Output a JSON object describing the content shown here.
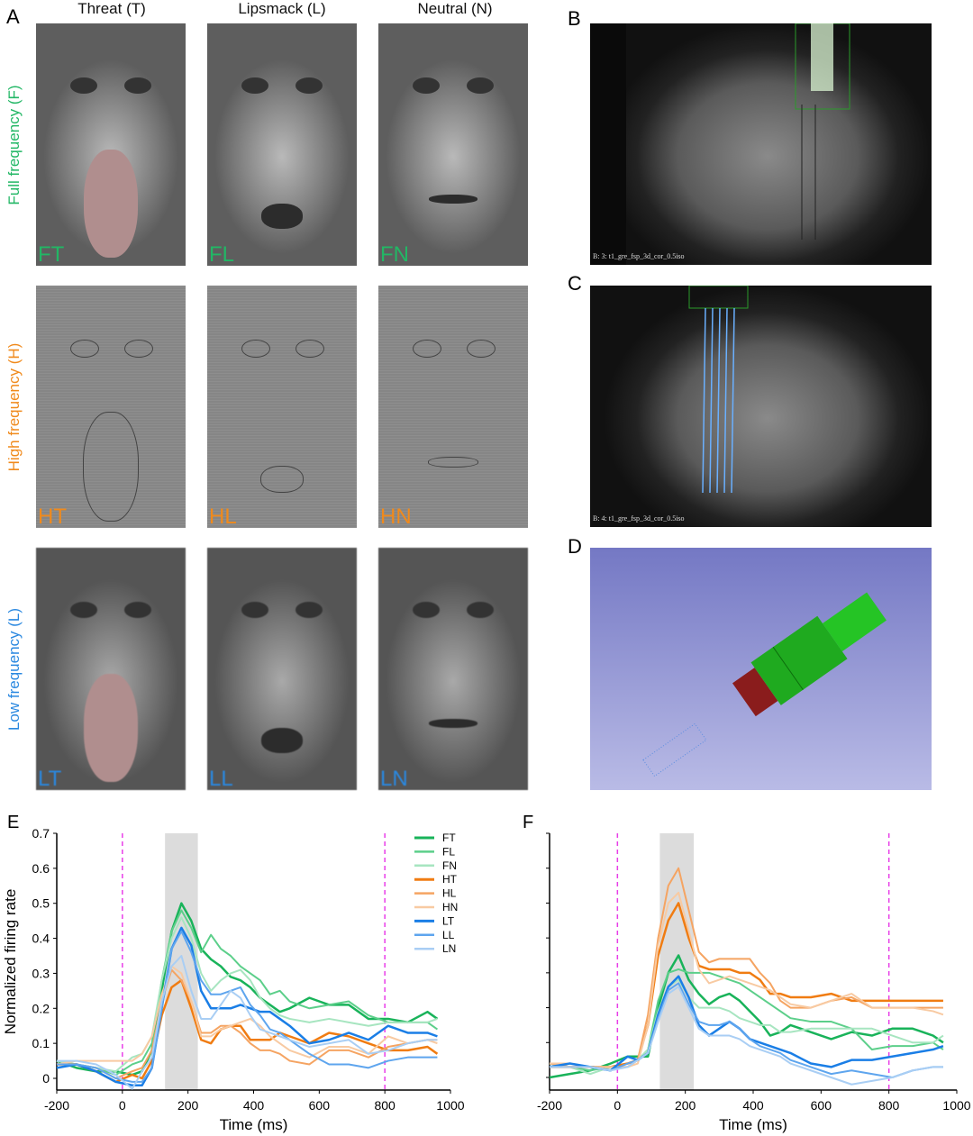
{
  "panels": {
    "A": "A",
    "B": "B",
    "C": "C",
    "D": "D",
    "E": "E",
    "F": "F"
  },
  "columns": [
    "Threat (T)",
    "Lipsmack (L)",
    "Neutral (N)"
  ],
  "rows": [
    {
      "label": "Full frequency (F)",
      "color": "#22b765",
      "images": [
        "FT",
        "FL",
        "FN"
      ]
    },
    {
      "label": "High frequency (H)",
      "color": "#f08a1c",
      "images": [
        "HT",
        "HL",
        "HN"
      ]
    },
    {
      "label": "Low frequency (L)",
      "color": "#2a88e0",
      "images": [
        "LT",
        "LL",
        "LN"
      ]
    }
  ],
  "mri": {
    "B_caption": "B: 3: t1_gre_fsp_3d_cor_0.5iso",
    "C_caption": "B: 4: t1_gre_fsp_3d_cor_0.5iso"
  },
  "chart_data": [
    {
      "panel": "E",
      "type": "line",
      "xlabel": "Time (ms)",
      "ylabel": "Normalized firing rate",
      "xlim": [
        -200,
        1000
      ],
      "ylim": [
        -0.03,
        0.7
      ],
      "xticks": [
        -200,
        0,
        200,
        400,
        600,
        800,
        1000
      ],
      "yticks": [
        0,
        0.1,
        0.2,
        0.3,
        0.4,
        0.5,
        0.6,
        0.7
      ],
      "ytick_labels_shown": true,
      "vlines_dashed": [
        0,
        800
      ],
      "vline_color": "#e83ee8",
      "shaded_window": [
        130,
        230
      ],
      "legend": "top-right",
      "x": [
        -200,
        -140,
        -80,
        -20,
        30,
        60,
        90,
        120,
        150,
        180,
        210,
        240,
        270,
        300,
        330,
        360,
        390,
        420,
        450,
        480,
        510,
        570,
        630,
        690,
        750,
        810,
        870,
        930,
        960
      ],
      "series": [
        {
          "name": "FT",
          "color": "#19b35a",
          "width": 2.5,
          "values": [
            0.05,
            0.03,
            0.02,
            0.02,
            0.01,
            0.02,
            0.08,
            0.25,
            0.42,
            0.5,
            0.45,
            0.37,
            0.34,
            0.32,
            0.29,
            0.28,
            0.26,
            0.23,
            0.21,
            0.19,
            0.2,
            0.23,
            0.21,
            0.21,
            0.17,
            0.17,
            0.16,
            0.19,
            0.17
          ]
        },
        {
          "name": "FL",
          "color": "#5ccf8a",
          "width": 2,
          "values": [
            0.05,
            0.04,
            0.03,
            0.01,
            0.04,
            0.05,
            0.1,
            0.28,
            0.42,
            0.48,
            0.43,
            0.36,
            0.41,
            0.37,
            0.35,
            0.32,
            0.3,
            0.28,
            0.24,
            0.25,
            0.22,
            0.2,
            0.21,
            0.22,
            0.18,
            0.16,
            0.16,
            0.16,
            0.14
          ]
        },
        {
          "name": "FN",
          "color": "#a7e5c0",
          "width": 2,
          "values": [
            0.05,
            0.04,
            0.03,
            0.02,
            0.06,
            0.07,
            0.12,
            0.28,
            0.4,
            0.46,
            0.4,
            0.3,
            0.25,
            0.28,
            0.3,
            0.31,
            0.28,
            0.23,
            0.2,
            0.18,
            0.17,
            0.16,
            0.17,
            0.16,
            0.15,
            0.16,
            0.16,
            0.16,
            0.17
          ]
        },
        {
          "name": "HT",
          "color": "#f07c12",
          "width": 2.5,
          "values": [
            0.04,
            0.04,
            0.02,
            -0.01,
            0.01,
            0.0,
            0.05,
            0.18,
            0.26,
            0.28,
            0.2,
            0.11,
            0.1,
            0.14,
            0.15,
            0.15,
            0.11,
            0.11,
            0.11,
            0.13,
            0.12,
            0.1,
            0.13,
            0.12,
            0.1,
            0.08,
            0.08,
            0.09,
            0.07
          ]
        },
        {
          "name": "HL",
          "color": "#f5a462",
          "width": 2,
          "values": [
            0.04,
            0.04,
            0.03,
            0.0,
            0.02,
            0.03,
            0.08,
            0.22,
            0.31,
            0.28,
            0.22,
            0.13,
            0.13,
            0.15,
            0.15,
            0.13,
            0.1,
            0.08,
            0.08,
            0.07,
            0.05,
            0.04,
            0.08,
            0.08,
            0.06,
            0.09,
            0.1,
            0.11,
            0.11
          ]
        },
        {
          "name": "HN",
          "color": "#f8caa2",
          "width": 2,
          "values": [
            0.04,
            0.05,
            0.05,
            0.05,
            0.05,
            0.07,
            0.12,
            0.24,
            0.32,
            0.3,
            0.22,
            0.12,
            0.12,
            0.14,
            0.15,
            0.16,
            0.17,
            0.15,
            0.12,
            0.1,
            0.08,
            0.06,
            0.09,
            0.09,
            0.07,
            0.12,
            0.1,
            0.11,
            0.1
          ]
        },
        {
          "name": "LT",
          "color": "#1a7ee6",
          "width": 2.5,
          "values": [
            0.03,
            0.04,
            0.02,
            -0.01,
            -0.02,
            -0.02,
            0.03,
            0.2,
            0.37,
            0.43,
            0.38,
            0.25,
            0.2,
            0.2,
            0.2,
            0.21,
            0.2,
            0.19,
            0.19,
            0.17,
            0.15,
            0.1,
            0.11,
            0.13,
            0.11,
            0.15,
            0.13,
            0.13,
            0.12
          ]
        },
        {
          "name": "LL",
          "color": "#5ea5ee",
          "width": 2,
          "values": [
            0.04,
            0.04,
            0.03,
            0.0,
            -0.01,
            -0.01,
            0.03,
            0.2,
            0.37,
            0.42,
            0.36,
            0.28,
            0.24,
            0.24,
            0.25,
            0.26,
            0.21,
            0.18,
            0.14,
            0.13,
            0.11,
            0.07,
            0.04,
            0.04,
            0.03,
            0.05,
            0.06,
            0.06,
            0.06
          ]
        },
        {
          "name": "LN",
          "color": "#a9cef4",
          "width": 2,
          "values": [
            0.05,
            0.05,
            0.04,
            0.01,
            -0.03,
            0.02,
            0.06,
            0.22,
            0.32,
            0.35,
            0.25,
            0.17,
            0.17,
            0.21,
            0.25,
            0.23,
            0.18,
            0.14,
            0.13,
            0.12,
            0.11,
            0.09,
            0.1,
            0.11,
            0.07,
            0.08,
            0.1,
            0.11,
            0.11
          ]
        }
      ]
    },
    {
      "panel": "F",
      "type": "line",
      "xlabel": "Time (ms)",
      "ylabel": "",
      "xlim": [
        -200,
        1000
      ],
      "ylim": [
        -0.03,
        0.7
      ],
      "xticks": [
        -200,
        0,
        200,
        400,
        600,
        800,
        1000
      ],
      "yticks": [
        0,
        0.1,
        0.2,
        0.3,
        0.4,
        0.5,
        0.6,
        0.7
      ],
      "ytick_labels_shown": false,
      "vlines_dashed": [
        0,
        800
      ],
      "vline_color": "#e83ee8",
      "shaded_window": [
        125,
        225
      ],
      "x": [
        -200,
        -140,
        -80,
        -20,
        30,
        60,
        90,
        120,
        150,
        180,
        210,
        240,
        270,
        300,
        330,
        360,
        390,
        420,
        450,
        480,
        510,
        570,
        630,
        690,
        750,
        810,
        870,
        930,
        960
      ],
      "series": [
        {
          "name": "FT",
          "color": "#19b35a",
          "width": 2.5,
          "values": [
            0.0,
            0.01,
            0.02,
            0.04,
            0.06,
            0.06,
            0.06,
            0.2,
            0.3,
            0.35,
            0.28,
            0.24,
            0.21,
            0.23,
            0.24,
            0.22,
            0.19,
            0.16,
            0.12,
            0.13,
            0.15,
            0.13,
            0.11,
            0.13,
            0.12,
            0.14,
            0.14,
            0.12,
            0.1
          ]
        },
        {
          "name": "FL",
          "color": "#5ccf8a",
          "width": 2,
          "values": [
            0.04,
            0.03,
            0.02,
            0.03,
            0.04,
            0.05,
            0.08,
            0.22,
            0.3,
            0.31,
            0.3,
            0.3,
            0.3,
            0.29,
            0.28,
            0.27,
            0.25,
            0.23,
            0.21,
            0.19,
            0.17,
            0.16,
            0.16,
            0.14,
            0.08,
            0.09,
            0.09,
            0.1,
            0.08
          ]
        },
        {
          "name": "FN",
          "color": "#a7e5c0",
          "width": 2,
          "values": [
            0.04,
            0.03,
            0.01,
            0.03,
            0.03,
            0.05,
            0.08,
            0.19,
            0.26,
            0.28,
            0.23,
            0.2,
            0.2,
            0.2,
            0.19,
            0.17,
            0.16,
            0.15,
            0.15,
            0.13,
            0.13,
            0.14,
            0.14,
            0.14,
            0.14,
            0.12,
            0.1,
            0.1,
            0.12
          ]
        },
        {
          "name": "HT",
          "color": "#f07c12",
          "width": 2.5,
          "values": [
            0.03,
            0.03,
            0.03,
            0.03,
            0.04,
            0.05,
            0.15,
            0.35,
            0.45,
            0.5,
            0.4,
            0.32,
            0.31,
            0.31,
            0.31,
            0.3,
            0.3,
            0.28,
            0.24,
            0.24,
            0.23,
            0.23,
            0.24,
            0.22,
            0.22,
            0.22,
            0.22,
            0.22,
            0.22
          ]
        },
        {
          "name": "HL",
          "color": "#f5a462",
          "width": 2,
          "values": [
            0.04,
            0.03,
            0.03,
            0.03,
            0.03,
            0.05,
            0.18,
            0.4,
            0.55,
            0.6,
            0.48,
            0.36,
            0.33,
            0.34,
            0.34,
            0.34,
            0.34,
            0.3,
            0.27,
            0.22,
            0.2,
            0.2,
            0.22,
            0.23,
            0.2,
            0.2,
            0.2,
            0.2,
            0.2
          ]
        },
        {
          "name": "HN",
          "color": "#f8caa2",
          "width": 2,
          "values": [
            0.04,
            0.04,
            0.03,
            0.03,
            0.03,
            0.04,
            0.15,
            0.38,
            0.5,
            0.53,
            0.42,
            0.31,
            0.27,
            0.28,
            0.29,
            0.28,
            0.27,
            0.26,
            0.25,
            0.23,
            0.21,
            0.2,
            0.22,
            0.24,
            0.2,
            0.2,
            0.2,
            0.19,
            0.18
          ]
        },
        {
          "name": "LT",
          "color": "#1a7ee6",
          "width": 2.5,
          "values": [
            0.03,
            0.04,
            0.03,
            0.02,
            0.06,
            0.05,
            0.07,
            0.18,
            0.26,
            0.29,
            0.23,
            0.15,
            0.12,
            0.14,
            0.16,
            0.14,
            0.11,
            0.1,
            0.09,
            0.08,
            0.07,
            0.04,
            0.03,
            0.05,
            0.05,
            0.06,
            0.07,
            0.08,
            0.09
          ]
        },
        {
          "name": "LL",
          "color": "#5ea5ee",
          "width": 2,
          "values": [
            0.03,
            0.03,
            0.03,
            0.02,
            0.04,
            0.05,
            0.07,
            0.17,
            0.25,
            0.27,
            0.21,
            0.16,
            0.15,
            0.15,
            0.16,
            0.14,
            0.11,
            0.09,
            0.08,
            0.07,
            0.05,
            0.03,
            0.01,
            0.02,
            0.01,
            0.0,
            0.02,
            0.03,
            0.03
          ]
        },
        {
          "name": "LN",
          "color": "#a9cef4",
          "width": 2,
          "values": [
            0.03,
            0.03,
            0.03,
            0.02,
            0.03,
            0.05,
            0.07,
            0.16,
            0.24,
            0.26,
            0.2,
            0.14,
            0.12,
            0.12,
            0.12,
            0.11,
            0.09,
            0.08,
            0.07,
            0.06,
            0.04,
            0.02,
            0.0,
            -0.02,
            -0.01,
            0.0,
            0.02,
            0.03,
            0.03
          ]
        }
      ]
    }
  ]
}
